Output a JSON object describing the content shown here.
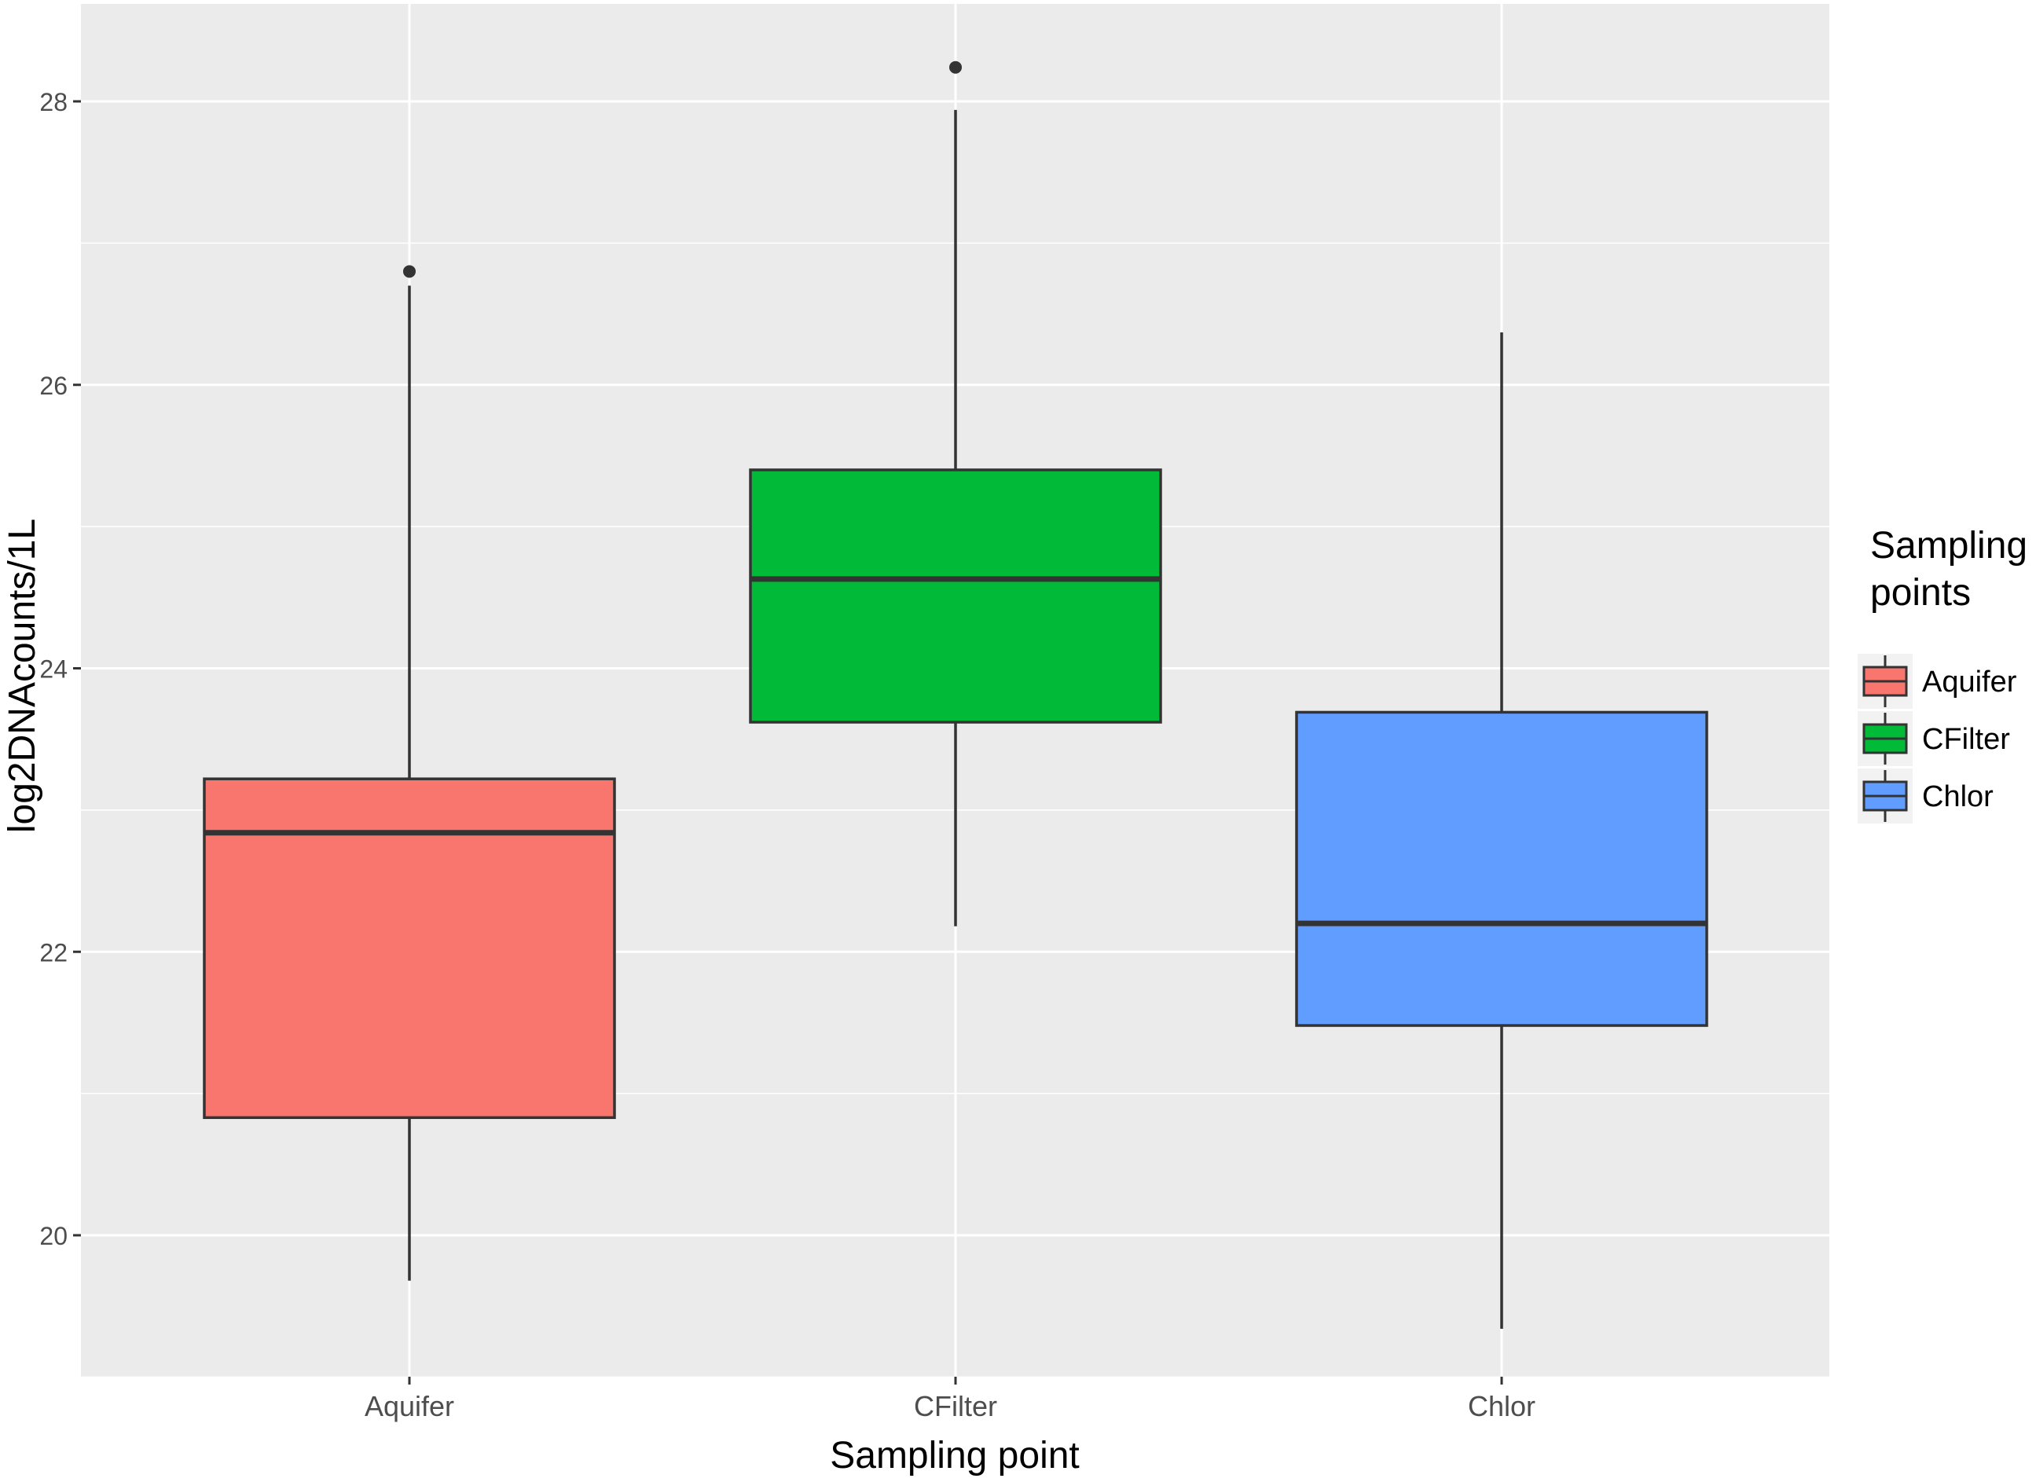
{
  "chart_data": {
    "type": "boxplot",
    "title": "",
    "xlabel": "Sampling point",
    "ylabel": "log2DNAcounts/1L",
    "categories": [
      "Aquifer",
      "CFilter",
      "Chlor"
    ],
    "ylim": [
      19.0,
      28.6
    ],
    "yticks": [
      20,
      22,
      24,
      26,
      28
    ],
    "grid": true,
    "legend": {
      "title_lines": [
        "Sampling",
        "points"
      ],
      "placement": "right",
      "entries": [
        "Aquifer",
        "CFilter",
        "Chlor"
      ]
    },
    "series": [
      {
        "category": "Aquifer",
        "color": "#F8766D",
        "whisker_low": 19.68,
        "q1": 20.83,
        "median": 22.84,
        "q3": 23.22,
        "whisker_high": 26.7,
        "outliers": [
          26.8
        ]
      },
      {
        "category": "CFilter",
        "color": "#00BA38",
        "whisker_low": 22.18,
        "q1": 23.62,
        "median": 24.63,
        "q3": 25.4,
        "whisker_high": 27.94,
        "outliers": [
          28.24
        ]
      },
      {
        "category": "Chlor",
        "color": "#619CFF",
        "whisker_low": 19.34,
        "q1": 21.48,
        "median": 22.2,
        "q3": 23.69,
        "whisker_high": 26.37,
        "outliers": []
      }
    ]
  }
}
